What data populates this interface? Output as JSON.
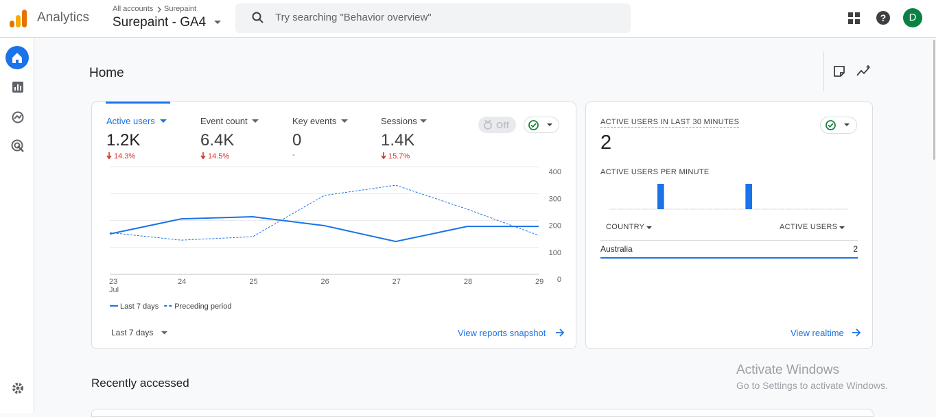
{
  "header": {
    "product": "Analytics",
    "breadcrumb": [
      "All accounts",
      "Surepaint"
    ],
    "property": "Surepaint - GA4",
    "search_placeholder": "Try searching \"Behavior overview\"",
    "avatar": "D"
  },
  "page_title": "Home",
  "overview": {
    "metrics": [
      {
        "label": "Active users",
        "value": "1.2K",
        "change": "14.3%"
      },
      {
        "label": "Event count",
        "value": "6.4K",
        "change": "14.5%"
      },
      {
        "label": "Key events",
        "value": "0",
        "change": "-"
      },
      {
        "label": "Sessions",
        "value": "1.4K",
        "change": "15.7%"
      }
    ],
    "comparison_toggle": "Off",
    "chart": {
      "type": "line",
      "x": [
        "23",
        "24",
        "25",
        "26",
        "27",
        "28",
        "29"
      ],
      "x_month": "Jul",
      "series": [
        {
          "name": "Last 7 days",
          "color": "#1a73e8",
          "style": "solid",
          "values": [
            150,
            206,
            214,
            181,
            122,
            178,
            178
          ]
        },
        {
          "name": "Preceding period",
          "color": "#1a73e8",
          "style": "dashed",
          "values": [
            155,
            127,
            140,
            293,
            331,
            242,
            145
          ]
        }
      ],
      "ylim": [
        0,
        400
      ],
      "yticks": [
        0,
        100,
        200,
        300,
        400
      ],
      "grid": true
    },
    "date_range": "Last 7 days",
    "link": "View reports snapshot"
  },
  "realtime": {
    "title": "ACTIVE USERS IN LAST 30 MINUTES",
    "value": "2",
    "per_minute_title": "ACTIVE USERS PER MINUTE",
    "per_minute": {
      "type": "bar",
      "color": "#1a73e8",
      "ylim": [
        0,
        1
      ],
      "values": [
        0,
        0,
        0,
        0,
        0,
        0,
        1,
        0,
        0,
        0,
        0,
        0,
        0,
        0,
        0,
        0,
        0,
        1,
        0,
        0,
        0,
        0,
        0,
        0,
        0,
        0,
        0,
        0,
        0,
        0
      ]
    },
    "table": {
      "columns": [
        "COUNTRY",
        "ACTIVE USERS"
      ],
      "rows": [
        [
          "Australia",
          "2"
        ]
      ]
    },
    "link": "View realtime"
  },
  "recently_accessed": "Recently accessed",
  "watermark": {
    "title": "Activate Windows",
    "text": "Go to Settings to activate Windows."
  }
}
